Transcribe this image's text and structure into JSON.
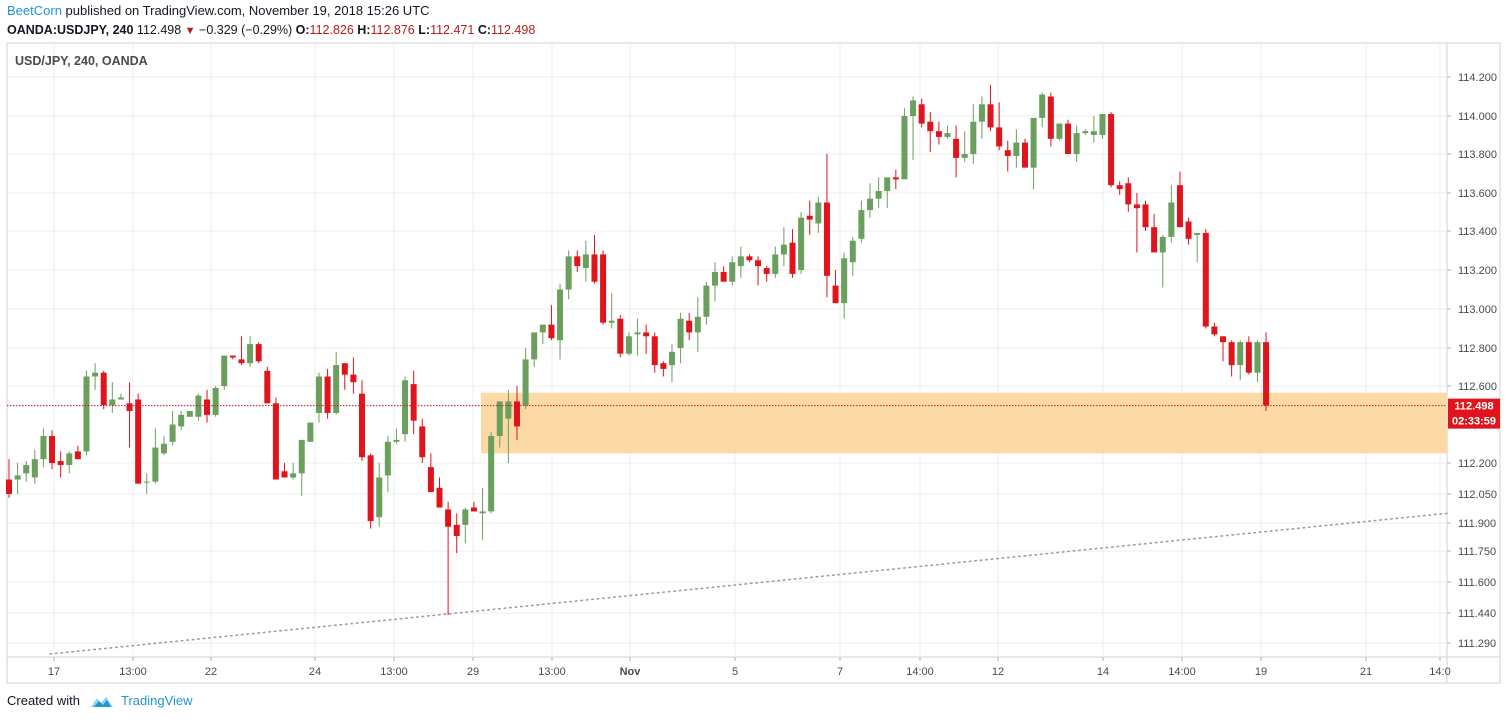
{
  "publish": {
    "author": "BeetCorn",
    "text": "published on TradingView.com, November 19, 2018 15:26 UTC"
  },
  "quote": {
    "symbol": "OANDA:USDJPY, 240",
    "last": "112.498",
    "change": "−0.329 (−0.29%)",
    "open_label": "O:",
    "open": "112.826",
    "high_label": "H:",
    "high": "112.876",
    "low_label": "L:",
    "low": "112.471",
    "close_label": "C:",
    "close": "112.498"
  },
  "footer": {
    "created_with": "Created with",
    "brand": "TradingView"
  },
  "colors": {
    "up": "#6a9f5d",
    "down": "#e0141c",
    "zone": "#fcd9a5",
    "price_tag": "#e0141c",
    "grid": "#ececec",
    "axis_text": "#4a4a4a"
  },
  "chart_data": {
    "type": "candlestick",
    "title": "USD/JPY, 240, OANDA",
    "ylim": [
      111.2,
      114.42
    ],
    "y_ticks": [
      "114.200",
      "114.000",
      "113.800",
      "113.600",
      "113.400",
      "113.200",
      "113.000",
      "112.800",
      "112.600",
      "112.200",
      "112.050",
      "111.900",
      "111.750",
      "111.600",
      "111.440",
      "111.290"
    ],
    "x_ticks": [
      "17",
      "13:00",
      "22",
      "24",
      "13:00",
      "29",
      "13:00",
      "Nov",
      "5",
      "7",
      "14:00",
      "12",
      "14",
      "14:00",
      "19",
      "21",
      "14:0"
    ],
    "last_price": "112.498",
    "countdown": "02:33:59",
    "support_zone": [
      112.25,
      112.565
    ],
    "trendline": {
      "from": [
        0,
        111.235
      ],
      "to": [
        188,
        111.95
      ]
    },
    "candles": [
      [
        112.12,
        112.22,
        112.03,
        112.05
      ],
      [
        112.12,
        112.2,
        112.05,
        112.14
      ],
      [
        112.15,
        112.21,
        112.11,
        112.19
      ],
      [
        112.13,
        112.27,
        112.1,
        112.22
      ],
      [
        112.22,
        112.38,
        112.18,
        112.34
      ],
      [
        112.34,
        112.37,
        112.17,
        112.2
      ],
      [
        112.21,
        112.26,
        112.13,
        112.19
      ],
      [
        112.19,
        112.26,
        112.15,
        112.25
      ],
      [
        112.26,
        112.29,
        112.22,
        112.22
      ],
      [
        112.26,
        112.68,
        112.24,
        112.65
      ],
      [
        112.65,
        112.72,
        112.58,
        112.67
      ],
      [
        112.67,
        112.68,
        112.48,
        112.5
      ],
      [
        112.5,
        112.62,
        112.46,
        112.53
      ],
      [
        112.53,
        112.56,
        112.53,
        112.54
      ],
      [
        112.51,
        112.62,
        112.28,
        112.47
      ],
      [
        112.53,
        112.56,
        112.1,
        112.1
      ],
      [
        112.11,
        112.15,
        112.05,
        112.11
      ],
      [
        112.11,
        112.38,
        112.1,
        112.28
      ],
      [
        112.25,
        112.34,
        112.24,
        112.3
      ],
      [
        112.31,
        112.47,
        112.29,
        112.4
      ],
      [
        112.39,
        112.47,
        112.37,
        112.45
      ],
      [
        112.44,
        112.47,
        112.44,
        112.47
      ],
      [
        112.44,
        112.56,
        112.42,
        112.55
      ],
      [
        112.53,
        112.58,
        112.41,
        112.45
      ],
      [
        112.45,
        112.6,
        112.44,
        112.59
      ],
      [
        112.6,
        112.76,
        112.58,
        112.76
      ],
      [
        112.76,
        112.76,
        112.74,
        112.75
      ],
      [
        112.74,
        112.86,
        112.71,
        112.72
      ],
      [
        112.72,
        112.86,
        112.7,
        112.82
      ],
      [
        112.82,
        112.83,
        112.72,
        112.73
      ],
      [
        112.68,
        112.7,
        112.51,
        112.51
      ],
      [
        112.51,
        112.54,
        112.12,
        112.12
      ],
      [
        112.16,
        112.2,
        112.13,
        112.13
      ],
      [
        112.13,
        112.2,
        112.12,
        112.15
      ],
      [
        112.15,
        112.32,
        112.04,
        112.32
      ],
      [
        112.31,
        112.41,
        112.31,
        112.41
      ],
      [
        112.46,
        112.67,
        112.41,
        112.65
      ],
      [
        112.65,
        112.69,
        112.43,
        112.46
      ],
      [
        112.46,
        112.78,
        112.45,
        112.71
      ],
      [
        112.72,
        112.72,
        112.58,
        112.66
      ],
      [
        112.66,
        112.75,
        112.56,
        112.62
      ],
      [
        112.56,
        112.63,
        112.21,
        112.23
      ],
      [
        112.24,
        112.25,
        111.87,
        111.91
      ],
      [
        111.93,
        112.2,
        111.88,
        112.13
      ],
      [
        112.14,
        112.34,
        112.06,
        112.31
      ],
      [
        112.31,
        112.38,
        112.3,
        112.32
      ],
      [
        112.35,
        112.65,
        112.31,
        112.63
      ],
      [
        112.61,
        112.68,
        112.35,
        112.42
      ],
      [
        112.39,
        112.43,
        112.2,
        112.23
      ],
      [
        112.18,
        112.25,
        112.06,
        112.06
      ],
      [
        112.08,
        112.13,
        111.98,
        111.98
      ],
      [
        111.97,
        112.01,
        111.43,
        111.88
      ],
      [
        111.89,
        111.95,
        111.74,
        111.83
      ],
      [
        111.89,
        111.98,
        111.79,
        111.97
      ],
      [
        111.98,
        112.01,
        111.96,
        111.96
      ],
      [
        111.95,
        112.08,
        111.81,
        111.96
      ],
      [
        111.96,
        112.36,
        111.95,
        112.34
      ],
      [
        112.34,
        112.52,
        112.28,
        112.52
      ],
      [
        112.43,
        112.58,
        112.2,
        112.52
      ],
      [
        112.52,
        112.6,
        112.32,
        112.39
      ],
      [
        112.5,
        112.8,
        112.48,
        112.74
      ],
      [
        112.74,
        112.88,
        112.7,
        112.88
      ],
      [
        112.88,
        112.92,
        112.82,
        112.92
      ],
      [
        112.92,
        113.02,
        112.84,
        112.85
      ],
      [
        112.84,
        113.13,
        112.74,
        113.1
      ],
      [
        113.1,
        113.3,
        113.05,
        113.27
      ],
      [
        113.27,
        113.3,
        113.19,
        113.22
      ],
      [
        113.21,
        113.35,
        113.14,
        113.28
      ],
      [
        113.28,
        113.38,
        113.13,
        113.14
      ],
      [
        113.28,
        113.3,
        112.92,
        112.93
      ],
      [
        112.93,
        113.08,
        112.9,
        112.94
      ],
      [
        112.95,
        112.97,
        112.75,
        112.77
      ],
      [
        112.77,
        112.88,
        112.76,
        112.86
      ],
      [
        112.87,
        112.95,
        112.76,
        112.88
      ],
      [
        112.88,
        112.92,
        112.77,
        112.86
      ],
      [
        112.86,
        112.88,
        112.67,
        112.71
      ],
      [
        112.72,
        112.73,
        112.65,
        112.69
      ],
      [
        112.71,
        112.82,
        112.62,
        112.78
      ],
      [
        112.8,
        112.98,
        112.72,
        112.95
      ],
      [
        112.94,
        112.98,
        112.84,
        112.88
      ],
      [
        112.88,
        113.06,
        112.78,
        112.96
      ],
      [
        112.96,
        113.14,
        112.92,
        113.12
      ],
      [
        113.12,
        113.24,
        113.04,
        113.19
      ],
      [
        113.19,
        113.22,
        113.15,
        113.14
      ],
      [
        113.14,
        113.27,
        113.12,
        113.24
      ],
      [
        113.22,
        113.32,
        113.16,
        113.27
      ],
      [
        113.27,
        113.28,
        113.24,
        113.25
      ],
      [
        113.25,
        113.27,
        113.12,
        113.22
      ],
      [
        113.21,
        113.22,
        113.14,
        113.18
      ],
      [
        113.18,
        113.32,
        113.16,
        113.28
      ],
      [
        113.28,
        113.42,
        113.22,
        113.33
      ],
      [
        113.34,
        113.41,
        113.16,
        113.18
      ],
      [
        113.2,
        113.5,
        113.18,
        113.47
      ],
      [
        113.48,
        113.56,
        113.38,
        113.46
      ],
      [
        113.44,
        113.58,
        113.39,
        113.55
      ],
      [
        113.55,
        113.8,
        113.06,
        113.17
      ],
      [
        113.12,
        113.2,
        113.05,
        113.03
      ],
      [
        113.03,
        113.29,
        112.95,
        113.26
      ],
      [
        113.24,
        113.37,
        113.17,
        113.35
      ],
      [
        113.36,
        113.56,
        113.34,
        113.51
      ],
      [
        113.51,
        113.65,
        113.47,
        113.57
      ],
      [
        113.57,
        113.68,
        113.52,
        113.61
      ],
      [
        113.61,
        113.68,
        113.52,
        113.68
      ],
      [
        113.68,
        113.72,
        113.62,
        113.67
      ],
      [
        113.67,
        114.04,
        113.68,
        114.0
      ],
      [
        114.0,
        114.1,
        113.77,
        114.08
      ],
      [
        114.06,
        114.09,
        113.94,
        113.96
      ],
      [
        113.97,
        114.02,
        113.81,
        113.92
      ],
      [
        113.92,
        113.97,
        113.85,
        113.89
      ],
      [
        113.89,
        113.95,
        113.88,
        113.91
      ],
      [
        113.88,
        113.95,
        113.68,
        113.78
      ],
      [
        113.78,
        113.92,
        113.76,
        113.8
      ],
      [
        113.8,
        114.06,
        113.75,
        113.97
      ],
      [
        113.97,
        114.1,
        113.88,
        114.06
      ],
      [
        114.06,
        114.16,
        113.92,
        113.94
      ],
      [
        113.94,
        114.07,
        113.82,
        113.84
      ],
      [
        113.82,
        113.87,
        113.71,
        113.79
      ],
      [
        113.79,
        113.93,
        113.73,
        113.86
      ],
      [
        113.86,
        113.88,
        113.74,
        113.73
      ],
      [
        113.73,
        113.99,
        113.62,
        113.99
      ],
      [
        113.99,
        114.12,
        113.94,
        114.11
      ],
      [
        114.1,
        114.12,
        113.84,
        113.88
      ],
      [
        113.88,
        113.96,
        113.87,
        113.96
      ],
      [
        113.96,
        113.98,
        113.8,
        113.8
      ],
      [
        113.8,
        113.95,
        113.76,
        113.91
      ],
      [
        113.91,
        113.93,
        113.9,
        113.92
      ],
      [
        113.9,
        114.0,
        113.86,
        113.92
      ],
      [
        113.9,
        114.01,
        113.88,
        114.01
      ],
      [
        114.01,
        114.02,
        113.63,
        113.64
      ],
      [
        113.64,
        113.66,
        113.59,
        113.62
      ],
      [
        113.65,
        113.68,
        113.5,
        113.54
      ],
      [
        113.54,
        113.6,
        113.29,
        113.52
      ],
      [
        113.54,
        113.56,
        113.4,
        113.42
      ],
      [
        113.42,
        113.49,
        113.3,
        113.29
      ],
      [
        113.29,
        113.38,
        113.11,
        113.37
      ],
      [
        113.37,
        113.64,
        113.34,
        113.55
      ],
      [
        113.64,
        113.71,
        113.42,
        113.42
      ],
      [
        113.45,
        113.47,
        113.33,
        113.36
      ],
      [
        113.38,
        113.39,
        113.24,
        113.39
      ],
      [
        113.39,
        113.41,
        112.9,
        112.91
      ],
      [
        112.91,
        112.93,
        112.86,
        112.87
      ],
      [
        112.86,
        112.86,
        112.73,
        112.83
      ],
      [
        112.83,
        112.84,
        112.65,
        112.71
      ],
      [
        112.71,
        112.84,
        112.63,
        112.83
      ],
      [
        112.83,
        112.86,
        112.66,
        112.67
      ],
      [
        112.67,
        112.84,
        112.62,
        112.83
      ],
      [
        112.83,
        112.88,
        112.47,
        112.5
      ]
    ]
  }
}
